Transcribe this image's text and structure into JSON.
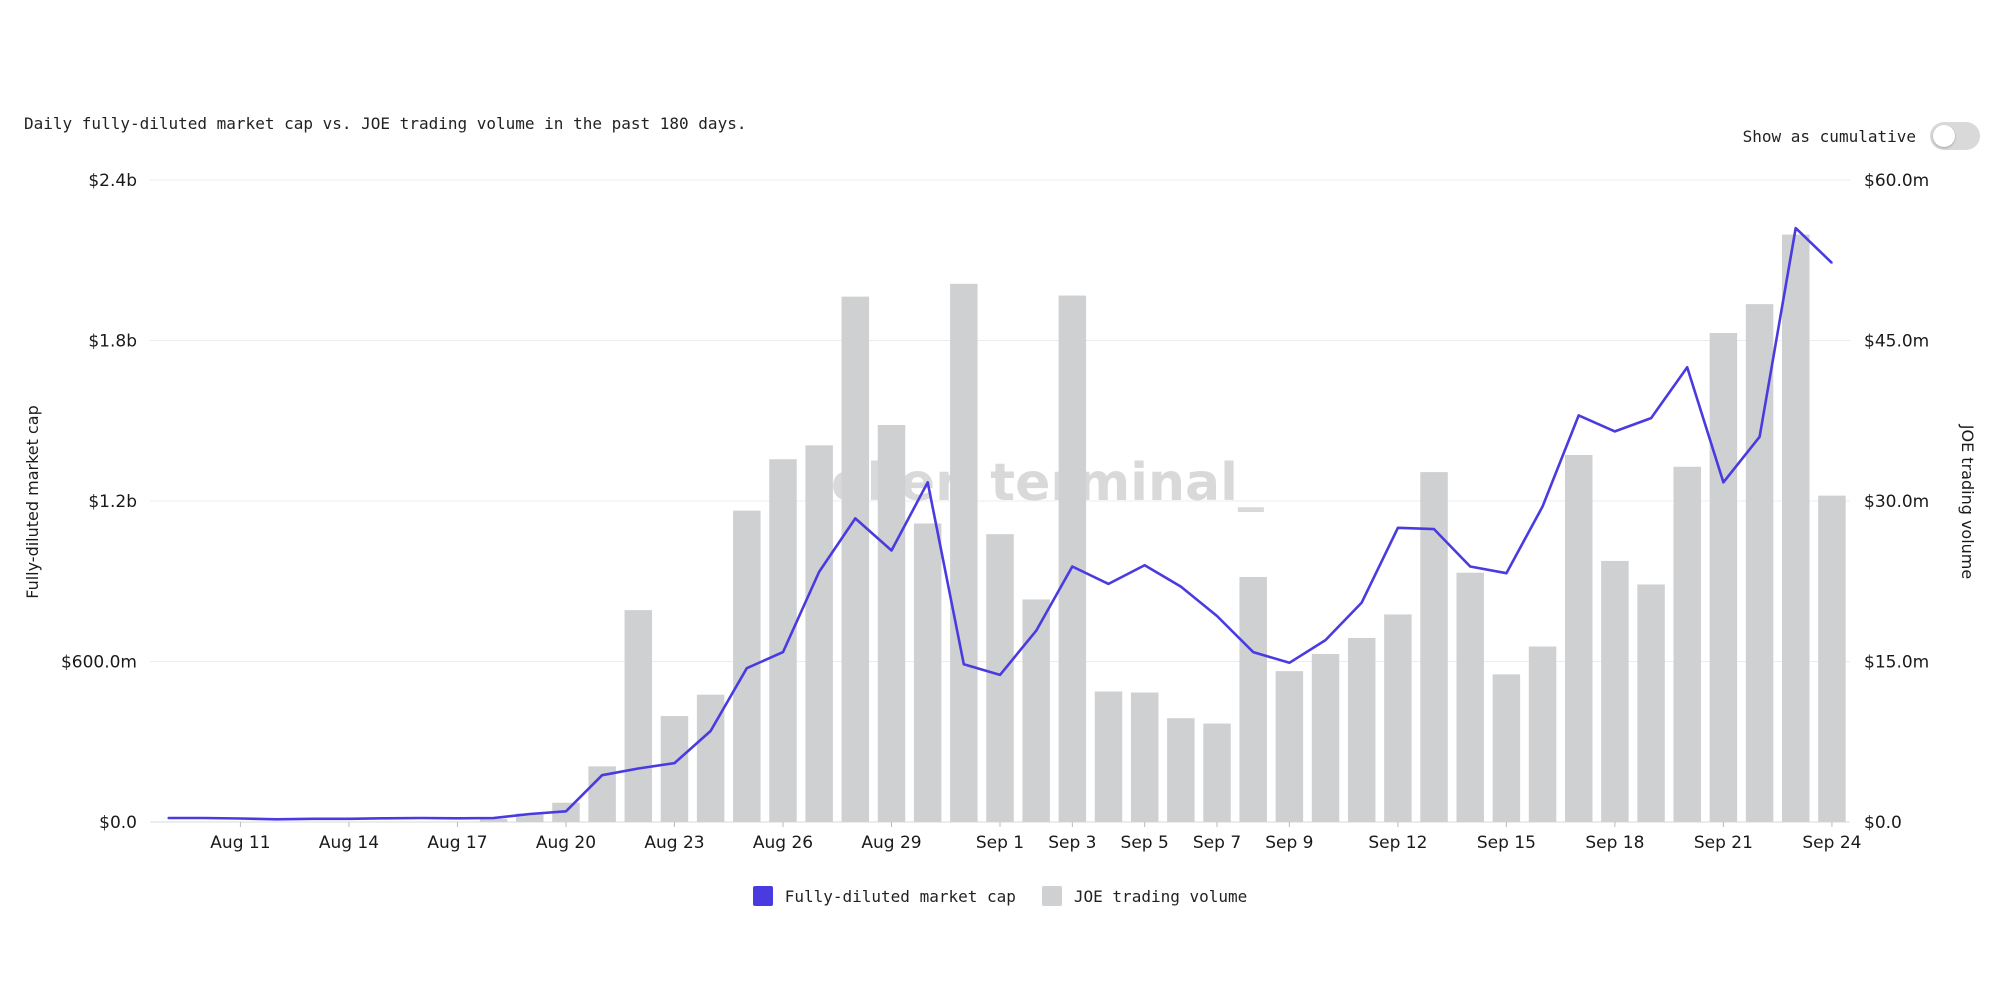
{
  "header": {
    "subtitle": "Daily fully-diluted market cap vs. JOE trading volume in the past 180 days.",
    "toggle_label": "Show as cumulative",
    "toggle_on": false
  },
  "watermark": "token terminal_",
  "colors": {
    "line": "#4a3be0",
    "bar": "#cfd0d2",
    "grid": "#ececec",
    "text": "#1a1a1a"
  },
  "legend": [
    {
      "label": "Fully-diluted market cap",
      "color": "#4a3be0"
    },
    {
      "label": "JOE trading volume",
      "color": "#cfd0d2"
    }
  ],
  "chart_data": {
    "type": "bar+line",
    "x_start": "Aug 9",
    "x_tick_labels": [
      "Aug 11",
      "Aug 14",
      "Aug 17",
      "Aug 20",
      "Aug 23",
      "Aug 26",
      "Aug 29",
      "Sep 1",
      "Sep 3",
      "Sep 5",
      "Sep 7",
      "Sep 9",
      "Sep 12",
      "Sep 15",
      "Sep 18",
      "Sep 21",
      "Sep 24"
    ],
    "left_axis": {
      "label": "Fully-diluted market cap",
      "ticks": [
        "$0.0",
        "$600.0m",
        "$1.2b",
        "$1.8b",
        "$2.4b"
      ],
      "range": [
        0,
        2.4
      ],
      "unit": "billion USD"
    },
    "right_axis": {
      "label": "JOE trading volume",
      "ticks": [
        "$0.0",
        "$15.0m",
        "$30.0m",
        "$45.0m",
        "$60.0m"
      ],
      "range": [
        0,
        60
      ],
      "unit": "million USD"
    },
    "grid": true,
    "legend_position": "bottom-center",
    "series": [
      {
        "name": "JOE trading volume",
        "kind": "bar",
        "axis": "right",
        "values": [
          0,
          0,
          0,
          0,
          0,
          0,
          0,
          0,
          0,
          0.3,
          0.8,
          1.8,
          5.2,
          19.8,
          9.9,
          11.9,
          29.1,
          33.9,
          35.2,
          49.1,
          37.1,
          27.9,
          50.3,
          26.9,
          20.8,
          49.2,
          12.2,
          12.1,
          9.7,
          9.2,
          22.9,
          14.1,
          15.7,
          17.2,
          19.4,
          32.7,
          23.3,
          13.8,
          16.4,
          34.3,
          24.4,
          22.2,
          33.2,
          45.7,
          48.4,
          54.9,
          30.5
        ]
      },
      {
        "name": "Fully-diluted market cap",
        "kind": "line",
        "axis": "left",
        "values": [
          0.015,
          0.015,
          0.013,
          0.01,
          0.012,
          0.012,
          0.014,
          0.015,
          0.014,
          0.015,
          0.03,
          0.04,
          0.175,
          0.2,
          0.22,
          0.34,
          0.575,
          0.635,
          0.935,
          1.135,
          1.015,
          1.27,
          0.59,
          0.55,
          0.715,
          0.955,
          0.89,
          0.96,
          0.88,
          0.77,
          0.635,
          0.595,
          0.68,
          0.82,
          1.1,
          1.095,
          0.955,
          0.93,
          1.18,
          1.52,
          1.46,
          1.51,
          1.7,
          1.27,
          1.44,
          2.22,
          2.09
        ]
      }
    ]
  }
}
